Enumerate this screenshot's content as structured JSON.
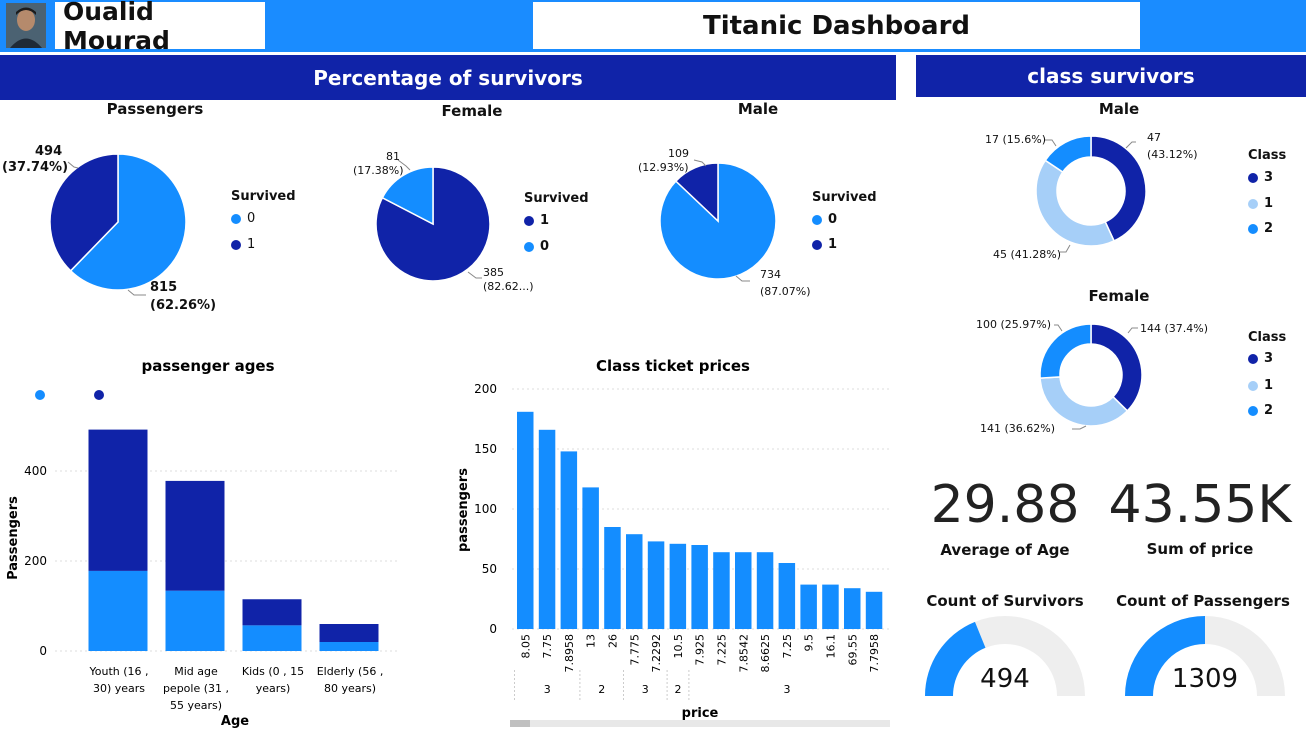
{
  "header": {
    "user_name": "Oualid Mourad",
    "dashboard_title": "Titanic Dashboard"
  },
  "banners": {
    "left": "Percentage of survivors",
    "right": "class survivors"
  },
  "colors": {
    "dark_blue": "#1023a8",
    "bright_blue": "#148dff",
    "light_blue": "#a6cff8",
    "gauge_bg": "#eeeeee"
  },
  "pies": {
    "passengers": {
      "title": "Passengers",
      "legend_title": "Survived",
      "legend": [
        "0",
        "1"
      ],
      "labels": {
        "a_num": "494",
        "a_pct": "(37.74%)",
        "b_num": "815",
        "b_pct": "(62.26%)"
      }
    },
    "female": {
      "title": "Female",
      "legend_title": "Survived",
      "legend": [
        "1",
        "0"
      ],
      "labels": {
        "a_num": "81",
        "a_pct": "(17.38%)",
        "b_num": "385",
        "b_pct": "(82.62...)"
      }
    },
    "male": {
      "title": "Male",
      "legend_title": "Survived",
      "legend": [
        "0",
        "1"
      ],
      "labels": {
        "a_num": "109",
        "a_pct": "(12.93%)",
        "b_num": "734",
        "b_pct": "(87.07%)"
      }
    }
  },
  "donuts": {
    "male": {
      "title": "Male",
      "legend_title": "Class",
      "legend": [
        "3",
        "1",
        "2"
      ],
      "labels": {
        "c3": "47",
        "c3_pct": "(43.12%)",
        "c1": "45 (41.28%)",
        "c2": "17 (15.6%)"
      }
    },
    "female": {
      "title": "Female",
      "legend_title": "Class",
      "legend": [
        "3",
        "1",
        "2"
      ],
      "labels": {
        "c3": "144 (37.4%)",
        "c1": "141 (36.62%)",
        "c2": "100 (25.97%)"
      }
    }
  },
  "kpis": {
    "avg_age": {
      "value": "29.88",
      "label": "Average of Age"
    },
    "sum_price": {
      "value": "43.55K",
      "label": "Sum of price"
    }
  },
  "gauges": {
    "survivors": {
      "label": "Count of Survivors",
      "value": "494",
      "fraction": 0.3774
    },
    "passengers": {
      "label": "Count of Passengers",
      "value": "1309",
      "fraction": 0.5
    }
  },
  "chart_data": [
    {
      "type": "pie",
      "title": "Passengers",
      "legend_title": "Survived",
      "categories": [
        "0",
        "1"
      ],
      "values": [
        815,
        494
      ],
      "percents": [
        62.26,
        37.74
      ]
    },
    {
      "type": "pie",
      "title": "Female",
      "legend_title": "Survived",
      "categories": [
        "1",
        "0"
      ],
      "values": [
        385,
        81
      ],
      "percents": [
        82.62,
        17.38
      ]
    },
    {
      "type": "pie",
      "title": "Male",
      "legend_title": "Survived",
      "categories": [
        "0",
        "1"
      ],
      "values": [
        734,
        109
      ],
      "percents": [
        87.07,
        12.93
      ]
    },
    {
      "type": "pie",
      "title": "Male",
      "legend_title": "Class",
      "categories": [
        "3",
        "1",
        "2"
      ],
      "values": [
        47,
        45,
        17
      ],
      "percents": [
        43.12,
        41.28,
        15.6
      ]
    },
    {
      "type": "pie",
      "title": "Female",
      "legend_title": "Class",
      "categories": [
        "3",
        "1",
        "2"
      ],
      "values": [
        144,
        141,
        100
      ],
      "percents": [
        37.4,
        36.62,
        25.97
      ]
    },
    {
      "type": "bar",
      "title": "passenger ages",
      "xlabel": "Age",
      "ylabel": "Passengers",
      "categories": [
        "Youth (16 , 30) years",
        "Mid age pepole (31 , 55 years)",
        "Kids (0 , 15 years)",
        "Elderly (56 , 80 years)"
      ],
      "category_lines": [
        [
          "Youth (16 ,",
          "30) years"
        ],
        [
          "Mid age",
          "pepole (31 ,",
          "55 years)"
        ],
        [
          "Kids (0 , 15",
          "years)"
        ],
        [
          "Elderly (56 ,",
          "80 years)"
        ]
      ],
      "series": [
        {
          "name": "",
          "color": "#148dff",
          "values": [
            178,
            134,
            57,
            20
          ]
        },
        {
          "name": "",
          "color": "#1023a8",
          "values": [
            314,
            244,
            58,
            40
          ]
        }
      ],
      "stacked": true,
      "yticks": [
        "0",
        "200",
        "400"
      ],
      "ylim": [
        0,
        560
      ]
    },
    {
      "type": "bar",
      "title": "Class ticket prices",
      "xlabel": "price",
      "ylabel": "passengers",
      "categories": [
        "8.05",
        "7.75",
        "7.8958",
        "13",
        "26",
        "7.775",
        "7.2292",
        "10.5",
        "7.925",
        "7.225",
        "7.8542",
        "8.6625",
        "7.25",
        "9.5",
        "16.1",
        "69.55",
        "7.7958"
      ],
      "values": [
        181,
        166,
        148,
        118,
        85,
        79,
        73,
        71,
        70,
        64,
        64,
        64,
        55,
        37,
        37,
        34,
        31
      ],
      "groups": [
        {
          "label": "3",
          "count": 3
        },
        {
          "label": "2",
          "count": 2
        },
        {
          "label": "3",
          "count": 2
        },
        {
          "label": "2",
          "count": 1
        },
        {
          "label": "3",
          "count": 9
        }
      ],
      "yticks": [
        "0",
        "50",
        "100",
        "150",
        "200"
      ],
      "ylim": [
        0,
        200
      ]
    }
  ]
}
